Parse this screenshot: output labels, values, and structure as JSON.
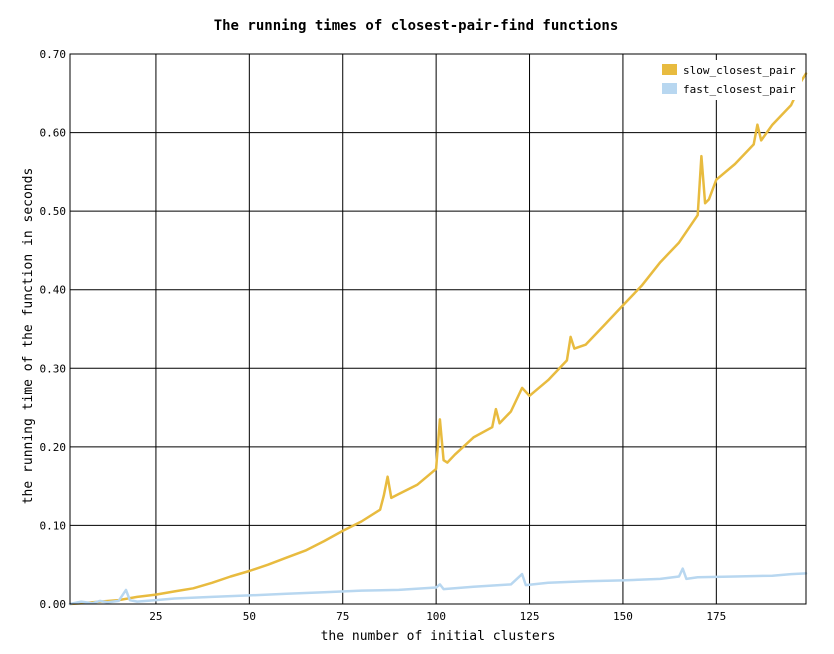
{
  "chart_data": {
    "type": "line",
    "title": "The running times of closest-pair-find functions",
    "xlabel": "the number of initial clusters",
    "ylabel": "the running time of the function in seconds",
    "xlim": [
      2,
      199
    ],
    "ylim": [
      0,
      0.7
    ],
    "x_ticks": [
      25,
      50,
      75,
      100,
      125,
      150,
      175
    ],
    "x_tick_labels": [
      "25",
      "50",
      "75",
      "100",
      "125",
      "150",
      "175"
    ],
    "y_ticks": [
      0,
      0.1,
      0.2,
      0.3,
      0.4,
      0.5,
      0.6,
      0.7
    ],
    "y_tick_labels": [
      "0.00",
      "0.10",
      "0.20",
      "0.30",
      "0.40",
      "0.50",
      "0.60",
      "0.70"
    ],
    "grid": true,
    "legend_position": "top-right",
    "series": [
      {
        "name": "slow_closest_pair",
        "color": "#e8bb3f",
        "x": [
          2,
          5,
          10,
          15,
          20,
          25,
          30,
          35,
          40,
          45,
          50,
          55,
          60,
          65,
          70,
          75,
          80,
          85,
          86,
          87,
          88,
          90,
          95,
          100,
          101,
          102,
          103,
          105,
          110,
          115,
          116,
          117,
          120,
          123,
          125,
          130,
          135,
          136,
          137,
          140,
          145,
          150,
          155,
          160,
          165,
          170,
          171,
          172,
          173,
          175,
          180,
          185,
          186,
          187,
          190,
          195,
          196,
          197,
          199
        ],
        "y": [
          0.0,
          0.001,
          0.003,
          0.005,
          0.009,
          0.012,
          0.016,
          0.02,
          0.027,
          0.035,
          0.042,
          0.05,
          0.059,
          0.068,
          0.08,
          0.093,
          0.105,
          0.12,
          0.138,
          0.162,
          0.135,
          0.14,
          0.152,
          0.172,
          0.235,
          0.183,
          0.18,
          0.19,
          0.212,
          0.225,
          0.248,
          0.23,
          0.245,
          0.275,
          0.265,
          0.285,
          0.31,
          0.34,
          0.325,
          0.33,
          0.355,
          0.38,
          0.405,
          0.435,
          0.46,
          0.495,
          0.57,
          0.51,
          0.515,
          0.54,
          0.56,
          0.585,
          0.61,
          0.59,
          0.61,
          0.635,
          0.645,
          0.66,
          0.675
        ]
      },
      {
        "name": "fast_closest_pair",
        "color": "#b8d7f0",
        "x": [
          2,
          5,
          8,
          10,
          12,
          15,
          17,
          18,
          20,
          25,
          30,
          40,
          50,
          60,
          70,
          80,
          90,
          100,
          101,
          102,
          110,
          120,
          123,
          124,
          130,
          140,
          150,
          160,
          165,
          166,
          167,
          170,
          180,
          190,
          195,
          199
        ],
        "y": [
          0.0,
          0.003,
          0.001,
          0.004,
          0.002,
          0.004,
          0.018,
          0.005,
          0.003,
          0.005,
          0.007,
          0.009,
          0.011,
          0.013,
          0.015,
          0.017,
          0.018,
          0.021,
          0.025,
          0.019,
          0.022,
          0.025,
          0.038,
          0.024,
          0.027,
          0.029,
          0.03,
          0.032,
          0.035,
          0.045,
          0.032,
          0.034,
          0.035,
          0.036,
          0.038,
          0.039
        ]
      }
    ]
  }
}
